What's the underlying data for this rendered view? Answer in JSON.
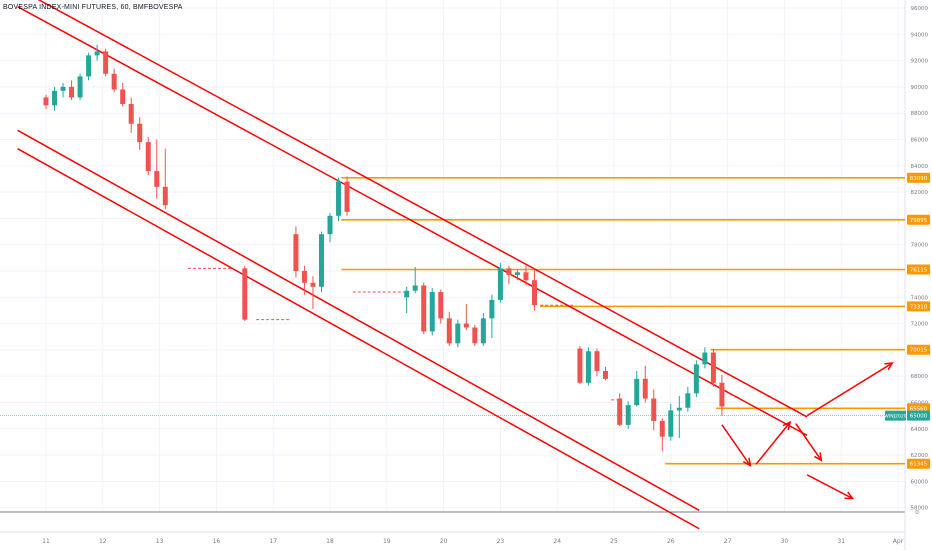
{
  "header": {
    "title": "BOVESPA INDEX-MINI FUTURES, 60, BMFBOVESPA"
  },
  "colors": {
    "up": "#26a69a",
    "down": "#ef5350",
    "channel": "#ff0000",
    "level": "#ff9800",
    "current": "#26a69a",
    "grid": "#f0f3fa",
    "axis_text": "#787b86"
  },
  "chart_data": {
    "type": "candlestick",
    "x_ticks": [
      "11",
      "12",
      "13",
      "16",
      "17",
      "18",
      "19",
      "20",
      "23",
      "24",
      "25",
      "26",
      "27",
      "30",
      "31",
      "Apr"
    ],
    "y_ticks": [
      96000,
      94000,
      92000,
      90000,
      88000,
      86000,
      84000,
      82000,
      80000,
      78000,
      76000,
      74000,
      72000,
      70000,
      68000,
      66000,
      64000,
      62000,
      60000,
      58000
    ],
    "y_axis_zero_label": "0",
    "ylim": [
      57000,
      96500
    ],
    "candles": [
      [
        0.0,
        89200,
        89400,
        88300,
        88600
      ],
      [
        0.15,
        88600,
        90000,
        88200,
        89700
      ],
      [
        0.3,
        89700,
        90300,
        89200,
        90000
      ],
      [
        0.45,
        90000,
        90500,
        89000,
        89200
      ],
      [
        0.6,
        89200,
        91000,
        89000,
        90800
      ],
      [
        0.75,
        90800,
        92600,
        90500,
        92400
      ],
      [
        0.9,
        92400,
        93200,
        92000,
        92700
      ],
      [
        1.05,
        92700,
        92900,
        90800,
        91000
      ],
      [
        1.2,
        91000,
        91400,
        89600,
        89800
      ],
      [
        1.35,
        89800,
        90300,
        88500,
        88700
      ],
      [
        1.5,
        88700,
        89200,
        86500,
        87200
      ],
      [
        1.65,
        87200,
        87700,
        85200,
        85800
      ],
      [
        1.8,
        85800,
        86200,
        83300,
        83600
      ],
      [
        1.95,
        83600,
        86000,
        81500,
        82400
      ],
      [
        2.1,
        82400,
        85300,
        80700,
        81000
      ],
      [
        3.5,
        76200,
        76400,
        72200,
        72300
      ],
      [
        4.4,
        78800,
        79400,
        75500,
        76000
      ],
      [
        4.55,
        76000,
        76400,
        74200,
        75100
      ],
      [
        4.7,
        75100,
        75600,
        73100,
        74800
      ],
      [
        4.85,
        74800,
        79000,
        74400,
        78800
      ],
      [
        5.0,
        78800,
        80400,
        78200,
        80200
      ],
      [
        5.15,
        80200,
        83100,
        79800,
        82800
      ],
      [
        5.3,
        82800,
        83200,
        80200,
        80500
      ],
      [
        6.35,
        74000,
        74800,
        72800,
        74500
      ],
      [
        6.5,
        74500,
        76300,
        74300,
        74900
      ],
      [
        6.65,
        74900,
        75100,
        71200,
        71400
      ],
      [
        6.8,
        71400,
        74700,
        71100,
        74400
      ],
      [
        6.95,
        74400,
        74600,
        72000,
        72400
      ],
      [
        7.1,
        72400,
        72900,
        70300,
        70500
      ],
      [
        7.25,
        70500,
        72300,
        70200,
        72000
      ],
      [
        7.4,
        72000,
        73500,
        71500,
        71700
      ],
      [
        7.55,
        71700,
        71900,
        70300,
        70500
      ],
      [
        7.7,
        70500,
        72800,
        70300,
        72400
      ],
      [
        7.85,
        72400,
        74200,
        70900,
        73800
      ],
      [
        8.0,
        73800,
        76600,
        73600,
        76200
      ],
      [
        8.15,
        76200,
        76400,
        75000,
        75700
      ],
      [
        8.3,
        75700,
        76100,
        75300,
        75900
      ],
      [
        8.45,
        75900,
        76400,
        74900,
        75300
      ],
      [
        8.6,
        75300,
        76100,
        73000,
        73400
      ],
      [
        9.4,
        70100,
        70300,
        67400,
        67500
      ],
      [
        9.55,
        67500,
        70200,
        67300,
        69900
      ],
      [
        9.7,
        69900,
        70100,
        68000,
        68400
      ],
      [
        9.85,
        68400,
        68700,
        67700,
        67800
      ],
      [
        10.1,
        66300,
        66700,
        64200,
        64300
      ],
      [
        10.25,
        64300,
        66100,
        64000,
        65800
      ],
      [
        10.4,
        65800,
        68400,
        65700,
        67800
      ],
      [
        10.55,
        67800,
        68800,
        66000,
        66300
      ],
      [
        10.7,
        66300,
        67000,
        63900,
        64600
      ],
      [
        10.85,
        64600,
        64800,
        62300,
        63400
      ],
      [
        11.0,
        63400,
        65900,
        63100,
        65400
      ],
      [
        11.15,
        65400,
        66500,
        63300,
        65600
      ],
      [
        11.3,
        65600,
        67200,
        65300,
        66700
      ],
      [
        11.45,
        66700,
        69200,
        66400,
        68900
      ],
      [
        11.6,
        68900,
        70200,
        68600,
        69800
      ],
      [
        11.75,
        69800,
        70100,
        67200,
        67500
      ],
      [
        11.9,
        67500,
        68100,
        65000,
        65700
      ]
    ],
    "gaps": [
      [
        2.5,
        3.3,
        76200
      ],
      [
        3.7,
        4.3,
        72300
      ],
      [
        5.4,
        6.3,
        74400
      ],
      [
        8.7,
        9.3,
        73400
      ],
      [
        9.95,
        10.05,
        66200
      ]
    ],
    "horizontal_levels": [
      {
        "price": 83090,
        "label": "83090"
      },
      {
        "price": 79895,
        "label": "79895"
      },
      {
        "price": 76115,
        "label": "76115"
      },
      {
        "price": 73310,
        "label": "73310"
      },
      {
        "price": 70015,
        "label": "70015"
      },
      {
        "price": 65560,
        "label": "65560"
      },
      {
        "price": 61345,
        "label": "61345"
      }
    ],
    "current_price": {
      "price": 65000,
      "label": "65000",
      "symbol": "WINJ2020"
    },
    "channel_lines": [
      [
        [
          -0.5,
          97500
        ],
        [
          13.4,
          64900
        ]
      ],
      [
        [
          -0.5,
          96100
        ],
        [
          13.4,
          63500
        ]
      ],
      [
        [
          -0.5,
          86700
        ],
        [
          11.5,
          57800
        ]
      ],
      [
        [
          -0.5,
          85300
        ],
        [
          11.5,
          56400
        ]
      ]
    ],
    "arrows": [
      [
        [
          13.4,
          65000
        ],
        [
          14.9,
          69000
        ]
      ],
      [
        [
          11.9,
          64300
        ],
        [
          12.4,
          61200
        ]
      ],
      [
        [
          12.5,
          61300
        ],
        [
          13.1,
          64500
        ]
      ],
      [
        [
          13.2,
          64400
        ],
        [
          13.65,
          61600
        ]
      ],
      [
        [
          13.4,
          60500
        ],
        [
          14.2,
          58700
        ]
      ]
    ]
  }
}
